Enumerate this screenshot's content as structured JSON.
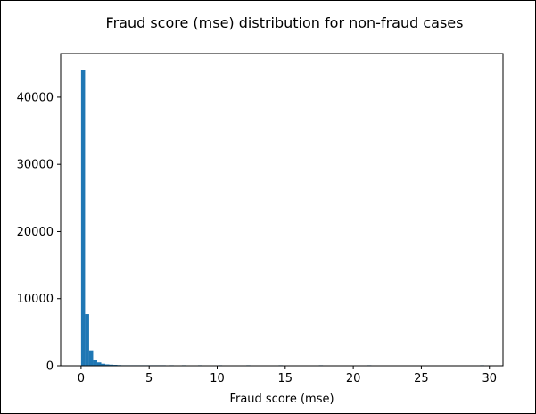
{
  "chart_data": {
    "type": "bar",
    "title": "Fraud score (mse) distribution for non-fraud cases",
    "xlabel": "Fraud score (mse)",
    "ylabel": "",
    "xlim": [
      -1.5,
      31.0
    ],
    "ylim": [
      0,
      46500
    ],
    "xticks": [
      0,
      5,
      10,
      15,
      20,
      25,
      30
    ],
    "yticks": [
      0,
      10000,
      20000,
      30000,
      40000
    ],
    "grid": false,
    "bar_color": "#1f77b4",
    "bin_width": 0.2962,
    "bins": [
      {
        "x0": 0.0,
        "count": 44000
      },
      {
        "x0": 0.2962,
        "count": 7700
      },
      {
        "x0": 0.5924,
        "count": 2300
      },
      {
        "x0": 0.8886,
        "count": 900
      },
      {
        "x0": 1.1848,
        "count": 500
      },
      {
        "x0": 1.481,
        "count": 300
      },
      {
        "x0": 1.7772,
        "count": 200
      },
      {
        "x0": 2.0734,
        "count": 160
      },
      {
        "x0": 2.3696,
        "count": 130
      },
      {
        "x0": 2.6658,
        "count": 100
      },
      {
        "x0": 2.962,
        "count": 70
      },
      {
        "x0": 3.2582,
        "count": 50
      },
      {
        "x0": 3.5544,
        "count": 40
      },
      {
        "x0": 3.8506,
        "count": 30
      },
      {
        "x0": 4.1468,
        "count": 25
      },
      {
        "x0": 4.443,
        "count": 20
      },
      {
        "x0": 4.7392,
        "count": 15
      },
      {
        "x0": 5.0354,
        "count": 12
      },
      {
        "x0": 5.3316,
        "count": 10
      },
      {
        "x0": 5.6278,
        "count": 8
      },
      {
        "x0": 5.924,
        "count": 6
      },
      {
        "x0": 6.5164,
        "count": 5
      },
      {
        "x0": 7.405,
        "count": 4
      },
      {
        "x0": 8.5898,
        "count": 3
      },
      {
        "x0": 10.0708,
        "count": 2
      },
      {
        "x0": 12.1442,
        "count": 2
      },
      {
        "x0": 14.5138,
        "count": 1
      },
      {
        "x0": 17.4758,
        "count": 1
      },
      {
        "x0": 21.0302,
        "count": 1
      },
      {
        "x0": 29.3238,
        "count": 1
      }
    ]
  }
}
